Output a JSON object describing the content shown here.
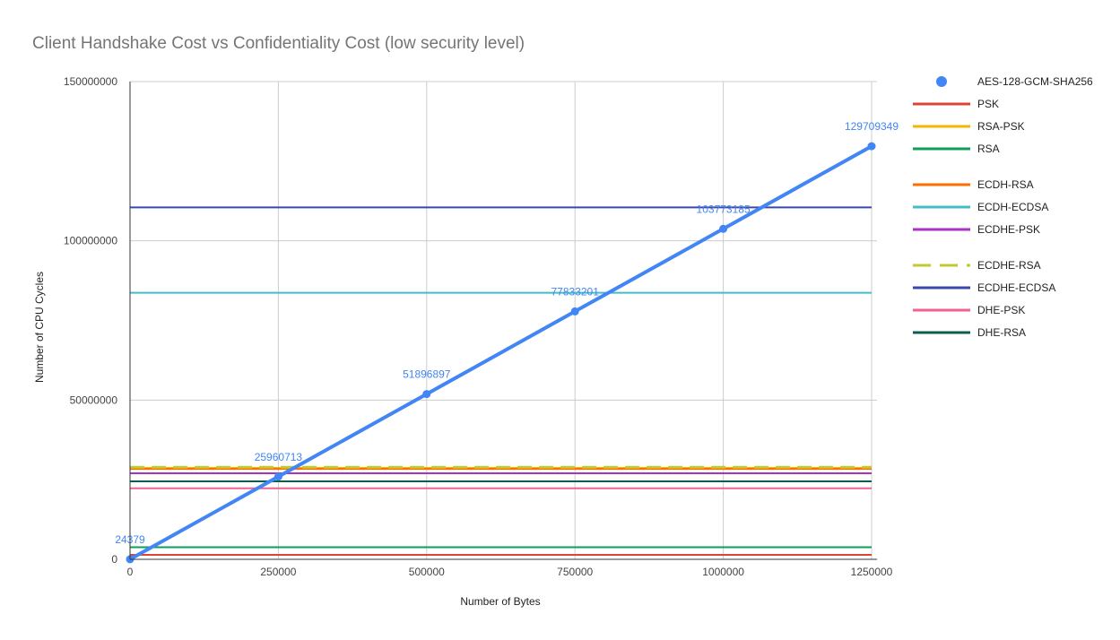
{
  "chart_data": {
    "type": "line",
    "title": "Client Handshake Cost vs Confidentiality Cost (low security level)",
    "xlabel": "Number of Bytes",
    "ylabel": "Number of CPU Cycles",
    "xlim": [
      0,
      1250000
    ],
    "ylim": [
      0,
      150000000
    ],
    "x_ticks": [
      "0",
      "250000",
      "500000",
      "750000",
      "1000000",
      "1250000"
    ],
    "y_ticks": [
      "0",
      "50000000",
      "100000000",
      "150000000"
    ],
    "grid": true,
    "legend_position": "right",
    "series": [
      {
        "name": "AES-128-GCM-SHA256",
        "style": "line-markers",
        "color": "#4285f4",
        "x": [
          0,
          250000,
          500000,
          750000,
          1000000,
          1250000
        ],
        "y": [
          24379,
          25960713,
          51896897,
          77833201,
          103773185,
          129709349
        ],
        "labels": [
          "24379",
          "25960713",
          "51896897",
          "77833201",
          "103773185",
          "129709349"
        ]
      },
      {
        "name": "PSK",
        "style": "line",
        "color": "#db4437",
        "x": [
          0,
          1250000
        ],
        "y": [
          1400000,
          1400000
        ]
      },
      {
        "name": "RSA-PSK",
        "style": "line",
        "color": "#f4b400",
        "x": [
          0,
          1250000
        ],
        "y": [
          28700000,
          28700000
        ]
      },
      {
        "name": "RSA",
        "style": "line",
        "color": "#0f9d58",
        "x": [
          0,
          1250000
        ],
        "y": [
          3800000,
          3800000
        ]
      },
      {
        "name": "ECDH-RSA",
        "style": "line",
        "color": "#ff6d00",
        "x": [
          0,
          1250000
        ],
        "y": [
          28400000,
          28400000
        ]
      },
      {
        "name": "ECDH-ECDSA",
        "style": "line",
        "color": "#46bdc6",
        "x": [
          0,
          1250000
        ],
        "y": [
          83700000,
          83700000
        ]
      },
      {
        "name": "ECDHE-PSK",
        "style": "line",
        "color": "#ab30c4",
        "x": [
          0,
          1250000
        ],
        "y": [
          27000000,
          27000000
        ]
      },
      {
        "name": "ECDHE-RSA",
        "style": "dashed",
        "color": "#c0ca33",
        "x": [
          0,
          1250000
        ],
        "y": [
          28900000,
          28900000
        ]
      },
      {
        "name": "ECDHE-ECDSA",
        "style": "line",
        "color": "#3949ab",
        "x": [
          0,
          1250000
        ],
        "y": [
          110500000,
          110500000
        ]
      },
      {
        "name": "DHE-PSK",
        "style": "line",
        "color": "#f06292",
        "x": [
          0,
          1250000
        ],
        "y": [
          22300000,
          22300000
        ]
      },
      {
        "name": "DHE-RSA",
        "style": "line",
        "color": "#0b5e4f",
        "x": [
          0,
          1250000
        ],
        "y": [
          24500000,
          24500000
        ]
      }
    ]
  }
}
